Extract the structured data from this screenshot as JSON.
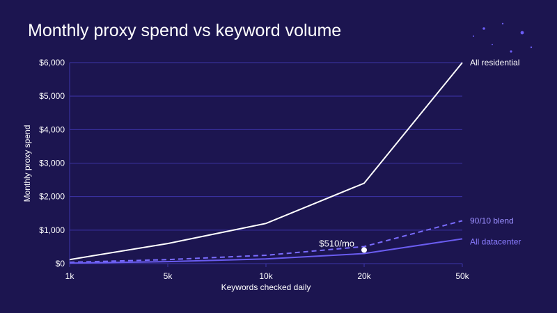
{
  "page": {
    "title": "Monthly proxy spend vs keyword volume"
  },
  "colors": {
    "background": "#1c1550",
    "grid": "#3d35a8",
    "residential": "#ffffff",
    "blend": "#7a6cff",
    "datacenter": "#6a5cf0",
    "blend_label": "#9b8fff",
    "datacenter_label": "#8a7cff",
    "decor": "#6b5cf5"
  },
  "chart_data": {
    "type": "line",
    "title": "Monthly proxy spend vs keyword volume",
    "xlabel": "Keywords checked daily",
    "ylabel": "Monthly proxy spend",
    "categories": [
      "1k",
      "5k",
      "10k",
      "20k",
      "50k"
    ],
    "ylim": [
      0,
      6000
    ],
    "y_ticks": [
      0,
      1000,
      2000,
      3000,
      4000,
      5000,
      6000
    ],
    "y_tick_labels": [
      "$0",
      "$1,000",
      "$2,000",
      "$3,000",
      "$4,000",
      "$5,000",
      "$6,000"
    ],
    "grid": true,
    "legend": "direct labels at line ends",
    "series": [
      {
        "name": "All residential",
        "values": [
          120,
          600,
          1200,
          2400,
          6000
        ],
        "style": "solid",
        "color": "#ffffff"
      },
      {
        "name": "90/10 blend",
        "values": [
          40,
          120,
          250,
          510,
          1280
        ],
        "style": "dashed",
        "color": "#7a6cff"
      },
      {
        "name": "All datacenter",
        "values": [
          15,
          60,
          140,
          300,
          740
        ],
        "style": "solid",
        "color": "#6a5cf0"
      }
    ],
    "annotations": [
      {
        "text": "$510/mo",
        "series": "90/10 blend",
        "category": "20k",
        "value": 510
      }
    ]
  }
}
